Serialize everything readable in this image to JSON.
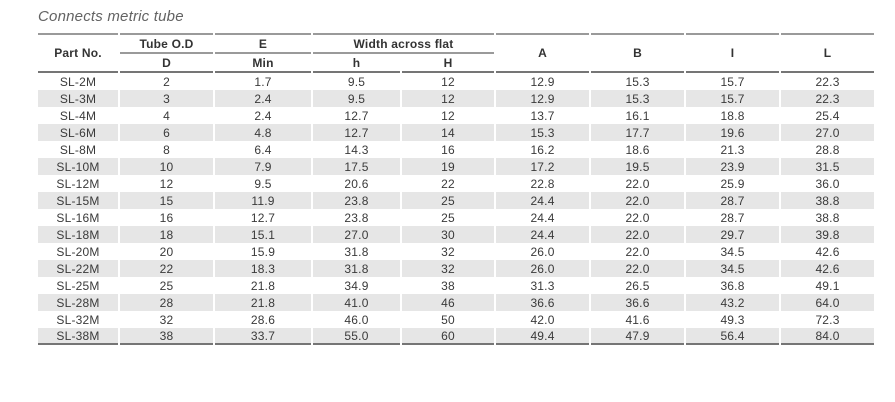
{
  "title": "Connects metric tube",
  "colors": {
    "stripe": "#e6e6e6",
    "rule_light": "#9a9a9a",
    "rule_dark": "#757575",
    "text": "#3a3a3a",
    "title_color": "#636363",
    "bg": "#ffffff"
  },
  "table": {
    "header": {
      "part_no": "Part No.",
      "tube_od": "Tube O.D",
      "tube_od_sub": "D",
      "e": "E",
      "e_sub": "Min",
      "width_across_flat": "Width across flat",
      "waf_sub_h": "h",
      "waf_sub_hh": "H",
      "a": "A",
      "b": "B",
      "i": "I",
      "l": "L"
    },
    "rows": [
      [
        "SL-2M",
        "2",
        "1.7",
        "9.5",
        "12",
        "12.9",
        "15.3",
        "15.7",
        "22.3"
      ],
      [
        "SL-3M",
        "3",
        "2.4",
        "9.5",
        "12",
        "12.9",
        "15.3",
        "15.7",
        "22.3"
      ],
      [
        "SL-4M",
        "4",
        "2.4",
        "12.7",
        "12",
        "13.7",
        "16.1",
        "18.8",
        "25.4"
      ],
      [
        "SL-6M",
        "6",
        "4.8",
        "12.7",
        "14",
        "15.3",
        "17.7",
        "19.6",
        "27.0"
      ],
      [
        "SL-8M",
        "8",
        "6.4",
        "14.3",
        "16",
        "16.2",
        "18.6",
        "21.3",
        "28.8"
      ],
      [
        "SL-10M",
        "10",
        "7.9",
        "17.5",
        "19",
        "17.2",
        "19.5",
        "23.9",
        "31.5"
      ],
      [
        "SL-12M",
        "12",
        "9.5",
        "20.6",
        "22",
        "22.8",
        "22.0",
        "25.9",
        "36.0"
      ],
      [
        "SL-15M",
        "15",
        "11.9",
        "23.8",
        "25",
        "24.4",
        "22.0",
        "28.7",
        "38.8"
      ],
      [
        "SL-16M",
        "16",
        "12.7",
        "23.8",
        "25",
        "24.4",
        "22.0",
        "28.7",
        "38.8"
      ],
      [
        "SL-18M",
        "18",
        "15.1",
        "27.0",
        "30",
        "24.4",
        "22.0",
        "29.7",
        "39.8"
      ],
      [
        "SL-20M",
        "20",
        "15.9",
        "31.8",
        "32",
        "26.0",
        "22.0",
        "34.5",
        "42.6"
      ],
      [
        "SL-22M",
        "22",
        "18.3",
        "31.8",
        "32",
        "26.0",
        "22.0",
        "34.5",
        "42.6"
      ],
      [
        "SL-25M",
        "25",
        "21.8",
        "34.9",
        "38",
        "31.3",
        "26.5",
        "36.8",
        "49.1"
      ],
      [
        "SL-28M",
        "28",
        "21.8",
        "41.0",
        "46",
        "36.6",
        "36.6",
        "43.2",
        "64.0"
      ],
      [
        "SL-32M",
        "32",
        "28.6",
        "46.0",
        "50",
        "42.0",
        "41.6",
        "49.3",
        "72.3"
      ],
      [
        "SL-38M",
        "38",
        "33.7",
        "55.0",
        "60",
        "49.4",
        "47.9",
        "56.4",
        "84.0"
      ]
    ]
  }
}
